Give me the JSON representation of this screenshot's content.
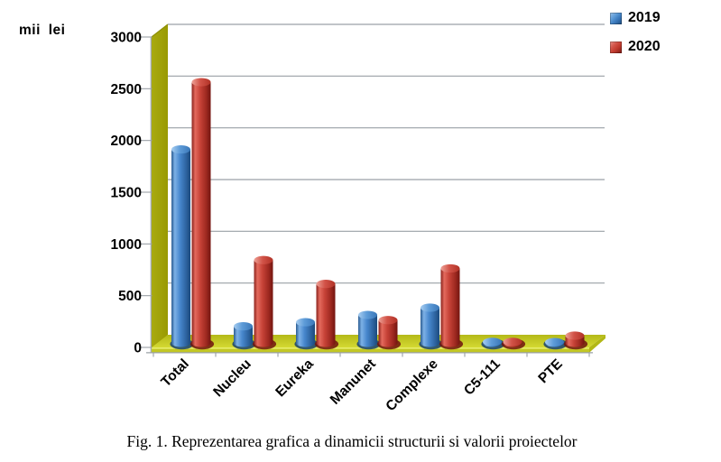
{
  "chart": {
    "axis_title": "mii lei",
    "caption": "Fig. 1. Reprezentarea grafica a dinamicii structurii si valorii proiectelor"
  },
  "chart_data": {
    "type": "bar",
    "subtype": "3d-cylinder",
    "title": "",
    "xlabel": "",
    "ylabel": "mii lei",
    "categories": [
      "Total",
      "Nucleu",
      "Eureka",
      "Manunet",
      "Complexe",
      "C5-111",
      "PTE"
    ],
    "series": [
      {
        "name": "2019",
        "color": "#3c7bbe",
        "values": [
          1870,
          160,
          200,
          270,
          340,
          10,
          5
        ]
      },
      {
        "name": "2020",
        "color": "#c03a2e",
        "values": [
          2520,
          800,
          570,
          220,
          720,
          10,
          70
        ]
      }
    ],
    "yticks": [
      0,
      500,
      1000,
      1500,
      2000,
      2500,
      3000
    ],
    "ylim": [
      0,
      3000
    ],
    "grid": true,
    "legend_position": "top-right",
    "wall_color": "#a3a408",
    "floor_color": "#c9ce2e",
    "gridline_color": "#9aa0a6",
    "x_label_rotation_deg": -45
  }
}
